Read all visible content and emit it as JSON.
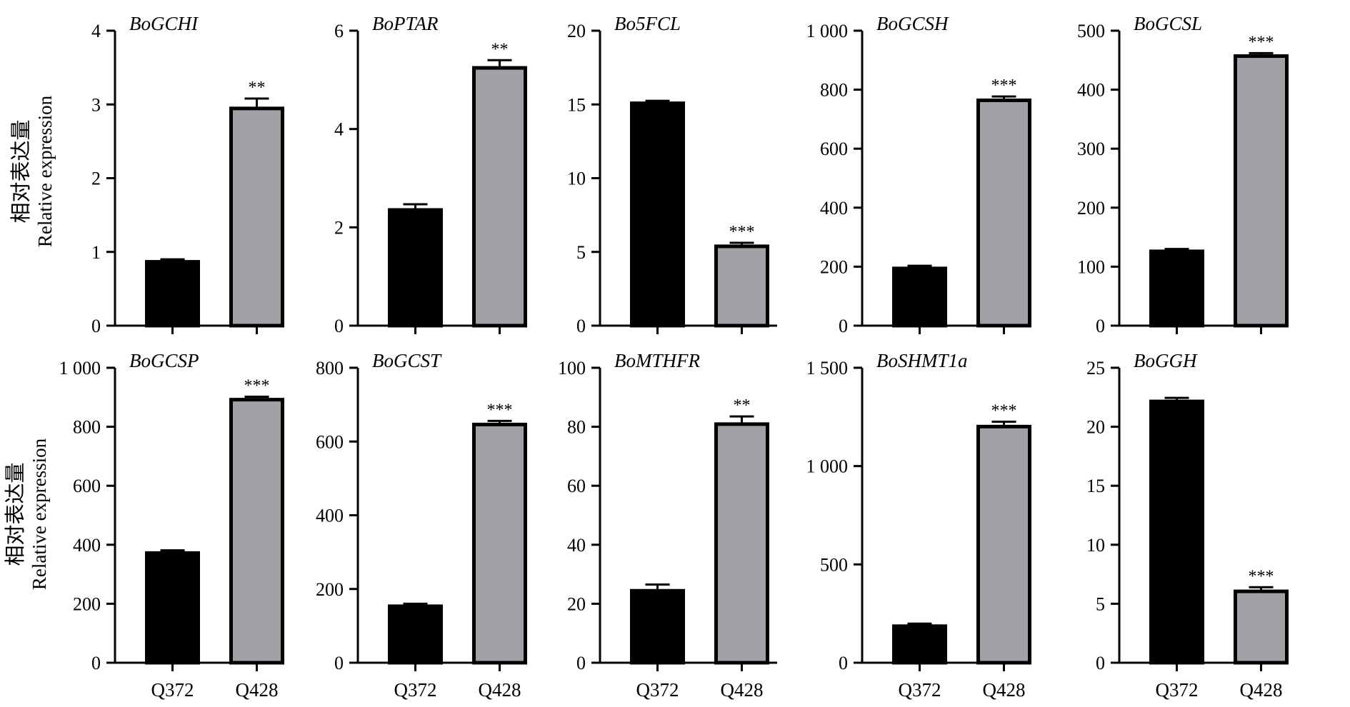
{
  "row_ylabels": [
    {
      "cn": "相对表达量",
      "en": "Relative expression"
    },
    {
      "cn": "相对表达量",
      "en": "Relative expression"
    }
  ],
  "colors": {
    "Q372": "#000000",
    "Q428": "#a1a0a5"
  },
  "chart_data": [
    {
      "type": "bar",
      "title": "BoGCHI",
      "categories": [
        "Q372",
        "Q428"
      ],
      "show_category_labels": false,
      "values": [
        0.89,
        2.97
      ],
      "errors": [
        0.01,
        0.11
      ],
      "significance": [
        "",
        "**"
      ],
      "ylim": [
        0,
        4
      ],
      "yticks": [
        0,
        1,
        2,
        3,
        4
      ],
      "ytick_labels": [
        "0",
        "1",
        "2",
        "3",
        "4"
      ]
    },
    {
      "type": "bar",
      "title": "BoPTAR",
      "categories": [
        "Q372",
        "Q428"
      ],
      "show_category_labels": false,
      "values": [
        2.39,
        5.28
      ],
      "errors": [
        0.08,
        0.12
      ],
      "significance": [
        "",
        "**"
      ],
      "ylim": [
        0,
        6
      ],
      "yticks": [
        0,
        2,
        4,
        6
      ],
      "ytick_labels": [
        "0",
        "2",
        "4",
        "6"
      ]
    },
    {
      "type": "bar",
      "title": "Bo5FCL",
      "categories": [
        "Q372",
        "Q428"
      ],
      "show_category_labels": false,
      "values": [
        15.2,
        5.5
      ],
      "errors": [
        0.05,
        0.12
      ],
      "significance": [
        "",
        "***"
      ],
      "ylim": [
        0,
        20
      ],
      "yticks": [
        0,
        5,
        10,
        15,
        20
      ],
      "ytick_labels": [
        "0",
        "5",
        "10",
        "15",
        "20"
      ]
    },
    {
      "type": "bar",
      "title": "BoGCSH",
      "categories": [
        "Q372",
        "Q428"
      ],
      "show_category_labels": false,
      "values": [
        200,
        770
      ],
      "errors": [
        3,
        7
      ],
      "significance": [
        "",
        "***"
      ],
      "ylim": [
        0,
        1000
      ],
      "yticks": [
        0,
        200,
        400,
        600,
        800,
        1000
      ],
      "ytick_labels": [
        "0",
        "200",
        "400",
        "600",
        "800",
        "1 000"
      ]
    },
    {
      "type": "bar",
      "title": "BoGCSL",
      "categories": [
        "Q372",
        "Q428"
      ],
      "show_category_labels": false,
      "values": [
        129,
        460
      ],
      "errors": [
        1,
        2
      ],
      "significance": [
        "",
        "***"
      ],
      "ylim": [
        0,
        500
      ],
      "yticks": [
        0,
        100,
        200,
        300,
        400,
        500
      ],
      "ytick_labels": [
        "0",
        "100",
        "200",
        "300",
        "400",
        "500"
      ]
    },
    {
      "type": "bar",
      "title": "BoGCSP",
      "categories": [
        "Q372",
        "Q428"
      ],
      "show_category_labels": true,
      "values": [
        378,
        898
      ],
      "errors": [
        3,
        4
      ],
      "significance": [
        "",
        "***"
      ],
      "ylim": [
        0,
        1000
      ],
      "yticks": [
        0,
        200,
        400,
        600,
        800,
        1000
      ],
      "ytick_labels": [
        "0",
        "200",
        "400",
        "600",
        "800",
        "1 000"
      ]
    },
    {
      "type": "bar",
      "title": "BoGCST",
      "categories": [
        "Q372",
        "Q428"
      ],
      "show_category_labels": true,
      "values": [
        158,
        651
      ],
      "errors": [
        2,
        5
      ],
      "significance": [
        "",
        "***"
      ],
      "ylim": [
        0,
        800
      ],
      "yticks": [
        0,
        200,
        400,
        600,
        800
      ],
      "ytick_labels": [
        "0",
        "200",
        "400",
        "600",
        "800"
      ]
    },
    {
      "type": "bar",
      "title": "BoMTHFR",
      "categories": [
        "Q372",
        "Q428"
      ],
      "show_category_labels": true,
      "values": [
        25,
        81.5
      ],
      "errors": [
        1.5,
        2
      ],
      "significance": [
        "",
        "**"
      ],
      "ylim": [
        0,
        100
      ],
      "yticks": [
        0,
        20,
        40,
        60,
        80,
        100
      ],
      "ytick_labels": [
        "0",
        "20",
        "40",
        "60",
        "80",
        "100"
      ]
    },
    {
      "type": "bar",
      "title": "BoSHMT1a",
      "categories": [
        "Q372",
        "Q428"
      ],
      "show_category_labels": true,
      "values": [
        195,
        1210
      ],
      "errors": [
        4,
        16
      ],
      "significance": [
        "",
        "***"
      ],
      "ylim": [
        0,
        1500
      ],
      "yticks": [
        0,
        500,
        1000,
        1500
      ],
      "ytick_labels": [
        "0",
        "500",
        "1 000",
        "1 500"
      ]
    },
    {
      "type": "bar",
      "title": "BoGGH",
      "categories": [
        "Q372",
        "Q428"
      ],
      "show_category_labels": true,
      "values": [
        22.3,
        6.2
      ],
      "errors": [
        0.15,
        0.2
      ],
      "significance": [
        "",
        "***"
      ],
      "ylim": [
        0,
        25
      ],
      "yticks": [
        0,
        5,
        10,
        15,
        20,
        25
      ],
      "ytick_labels": [
        "0",
        "5",
        "10",
        "15",
        "20",
        "25"
      ]
    }
  ]
}
